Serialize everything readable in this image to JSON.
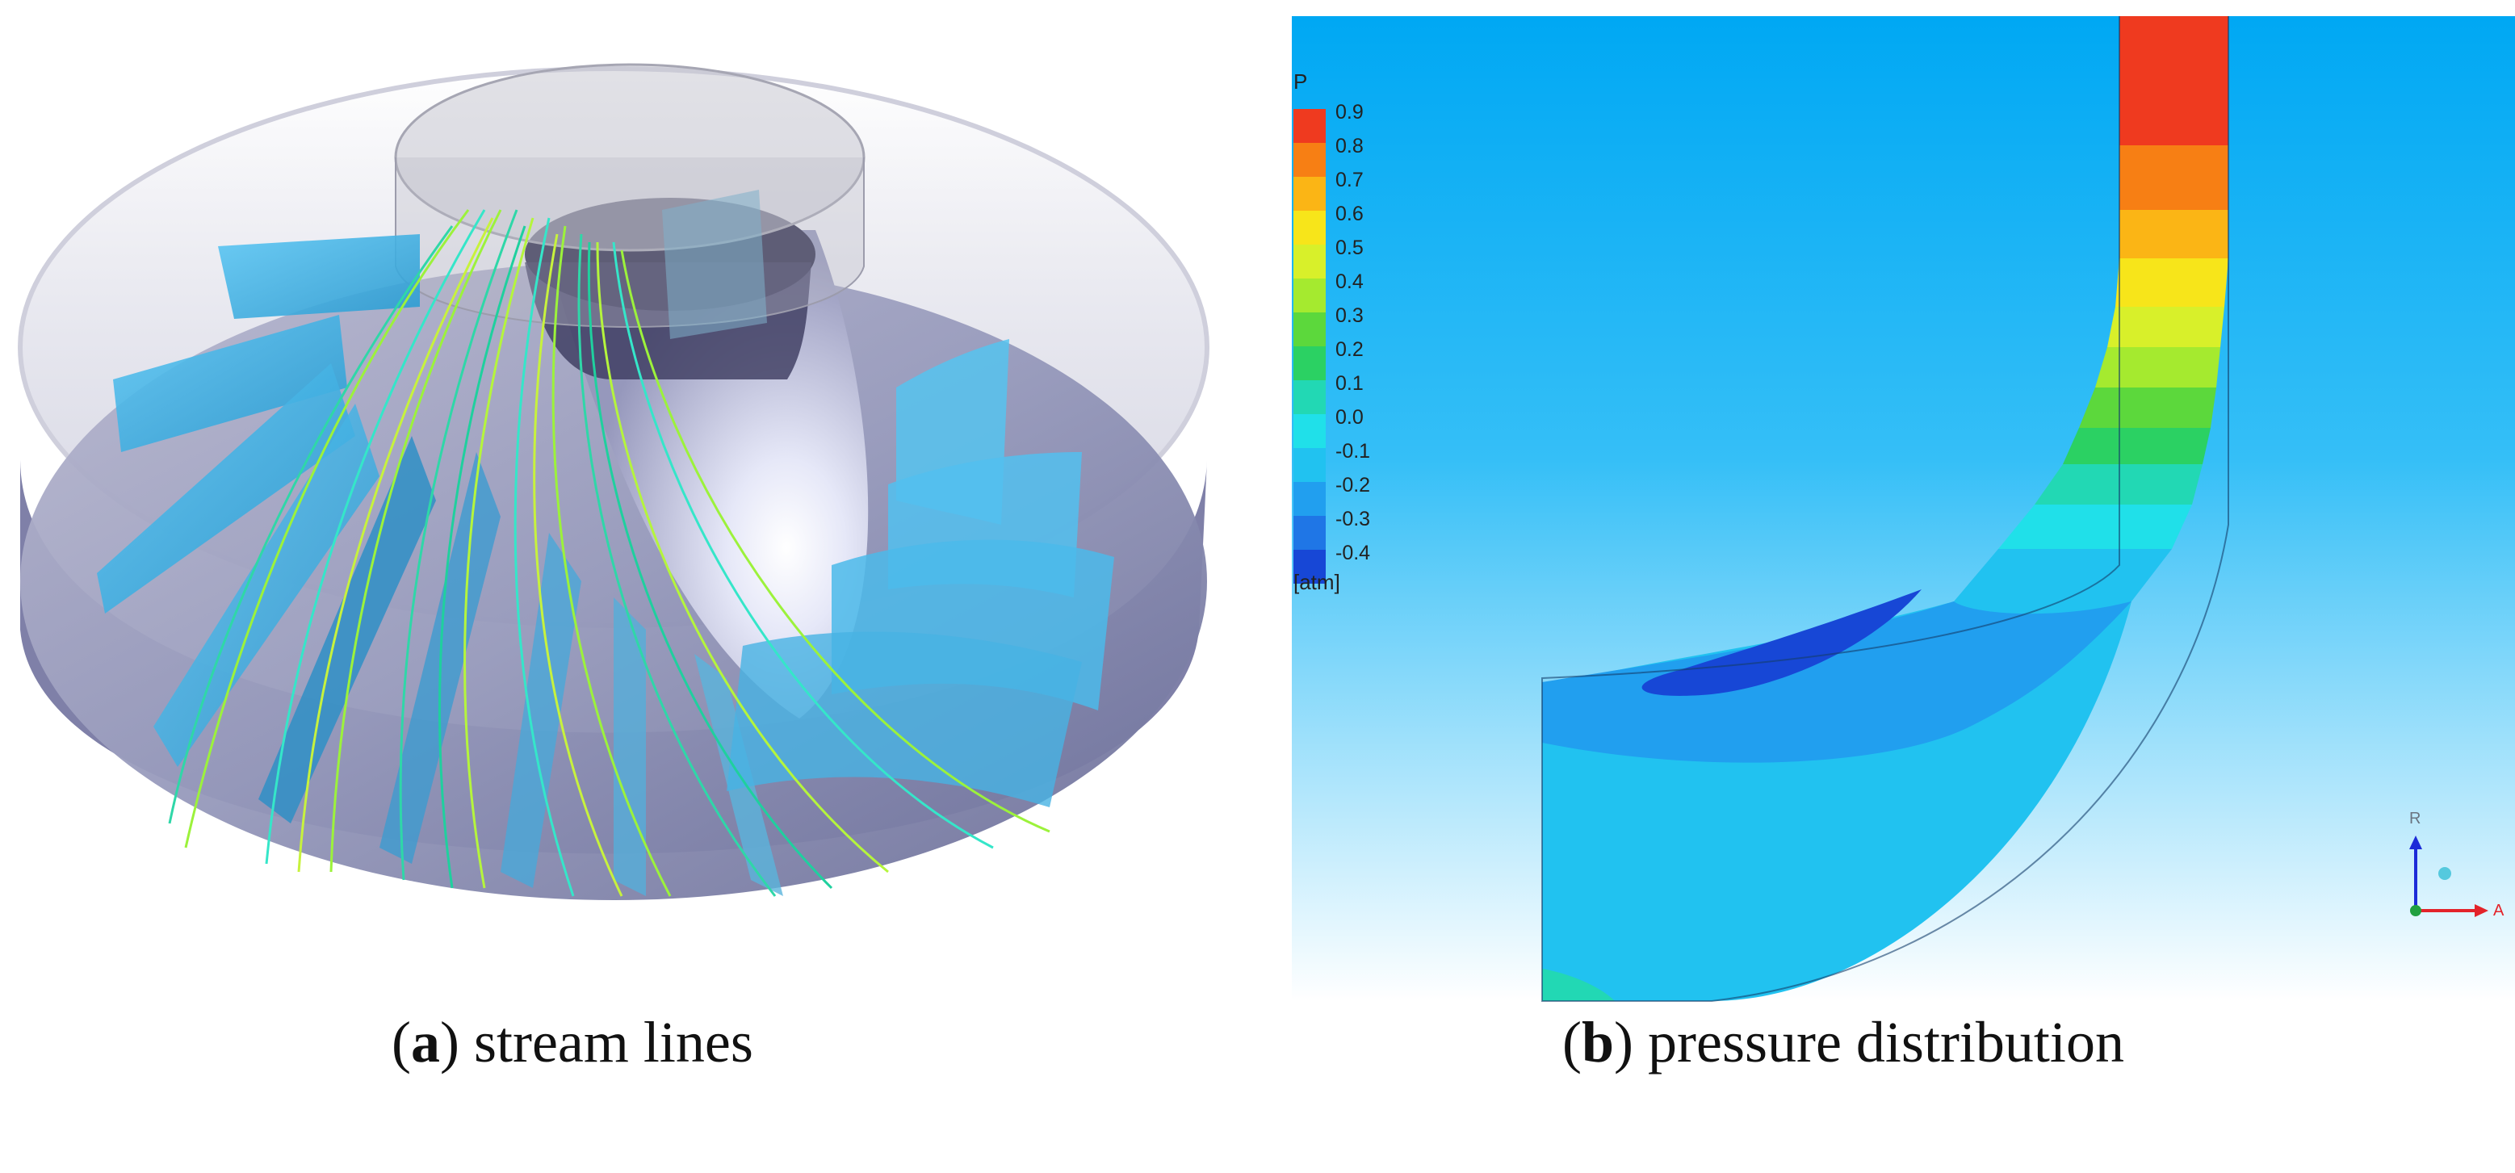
{
  "panel_a": {
    "caption_letter": "a",
    "caption_text": "stream lines"
  },
  "panel_b": {
    "caption_letter": "b",
    "caption_text": "pressure distribution",
    "legend": {
      "variable": "P",
      "unit": "[atm]",
      "ticks": [
        "0.9",
        "0.8",
        "0.7",
        "0.6",
        "0.5",
        "0.4",
        "0.3",
        "0.2",
        "0.1",
        "0.0",
        "-0.1",
        "-0.2",
        "-0.3",
        "-0.4"
      ],
      "colors": [
        "#ef3a1f",
        "#f77f14",
        "#fbb515",
        "#f7e51a",
        "#d8f02a",
        "#a5ea2f",
        "#5cd83c",
        "#2bd163",
        "#22d8b4",
        "#20e0e9",
        "#21c2f0",
        "#219fef",
        "#1f76e6",
        "#1747d6"
      ]
    },
    "axis_labels": {
      "vertical": "R",
      "horizontal": "A"
    }
  },
  "colors": {
    "background_top": "#00a8f3",
    "background_bottom": "#ffffff",
    "hub": "#8f92b0",
    "blade": "#45b6e6",
    "streamline_green": "#9cf23b",
    "streamline_cyan": "#35e6c9"
  }
}
